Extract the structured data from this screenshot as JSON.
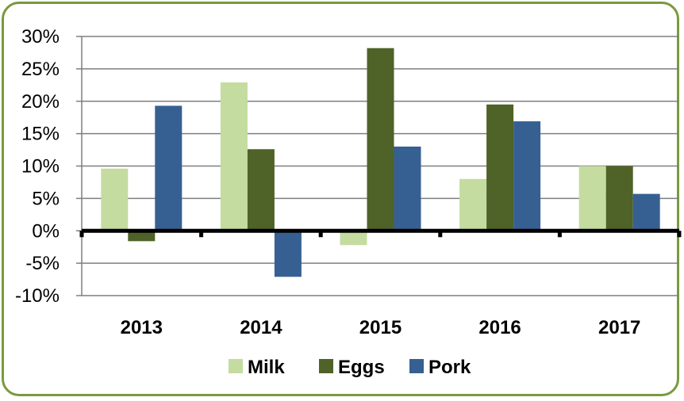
{
  "chart_data": {
    "type": "bar",
    "categories": [
      "2013",
      "2014",
      "2015",
      "2016",
      "2017"
    ],
    "series": [
      {
        "name": "Milk",
        "values": [
          9.6,
          22.9,
          -2.2,
          8.0,
          10.0
        ],
        "color": "#c4dca0"
      },
      {
        "name": "Eggs",
        "values": [
          -1.6,
          12.6,
          28.2,
          19.5,
          10.0
        ],
        "color": "#4f6228"
      },
      {
        "name": "Pork",
        "values": [
          19.3,
          -7.1,
          13.0,
          16.9,
          5.7
        ],
        "color": "#376092"
      }
    ],
    "ylim": [
      -10,
      30
    ],
    "yticks": [
      30,
      25,
      20,
      15,
      10,
      5,
      0,
      -5,
      -10
    ],
    "ytick_labels": [
      "30%",
      "25%",
      "20%",
      "15%",
      "10%",
      "5%",
      "0%",
      "-5%",
      "-10%"
    ],
    "grid": true,
    "legend": "bottom",
    "title": "",
    "xlabel": "",
    "ylabel": ""
  },
  "colors": {
    "frame": "#7a9a3c",
    "grid": "#7f7f7f",
    "zero_axis": "#000000"
  }
}
